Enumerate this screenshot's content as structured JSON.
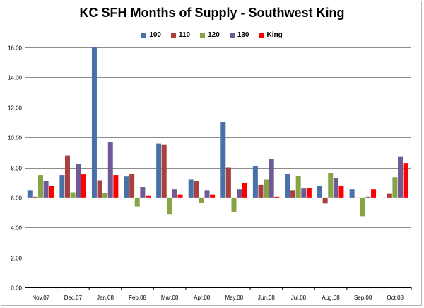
{
  "chart_data": {
    "type": "bar",
    "title": "KC SFH Months of Supply - Southwest King",
    "xlabel": "",
    "ylabel": "",
    "ylim": [
      0,
      16
    ],
    "baseline": 6,
    "yticks": [
      "0.00",
      "2.00",
      "4.00",
      "6.00",
      "8.00",
      "10.00",
      "12.00",
      "14.00",
      "16.00"
    ],
    "grid": true,
    "legend_position": "top",
    "categories": [
      "Nov.07",
      "Dec.07",
      "Jan.08",
      "Feb.08",
      "Mar.08",
      "Apr.08",
      "May.08",
      "Jun.08",
      "Jul.08",
      "Aug.08",
      "Sep.08",
      "Oct.08"
    ],
    "series": [
      {
        "name": "100",
        "color": "#4a70a8",
        "values": [
          6.45,
          7.5,
          16.0,
          7.4,
          9.6,
          7.2,
          11.0,
          8.1,
          7.55,
          6.8,
          6.55,
          6.0
        ]
      },
      {
        "name": "110",
        "color": "#a8413e",
        "values": [
          6.05,
          8.8,
          7.15,
          7.55,
          9.5,
          7.1,
          8.0,
          6.85,
          6.45,
          5.6,
          6.0,
          6.25
        ]
      },
      {
        "name": "120",
        "color": "#86a346",
        "values": [
          7.5,
          6.35,
          6.3,
          5.4,
          4.9,
          5.65,
          5.05,
          7.2,
          7.45,
          7.6,
          4.75,
          7.35
        ]
      },
      {
        "name": "130",
        "color": "#6e5b96",
        "values": [
          7.1,
          8.25,
          9.7,
          6.7,
          6.55,
          6.45,
          6.55,
          8.55,
          6.6,
          7.3,
          6.05,
          8.7
        ]
      },
      {
        "name": "King",
        "color": "#ff0000",
        "values": [
          6.75,
          7.55,
          7.5,
          6.1,
          6.2,
          6.2,
          6.95,
          6.05,
          6.65,
          6.8,
          6.55,
          8.3
        ]
      }
    ]
  }
}
